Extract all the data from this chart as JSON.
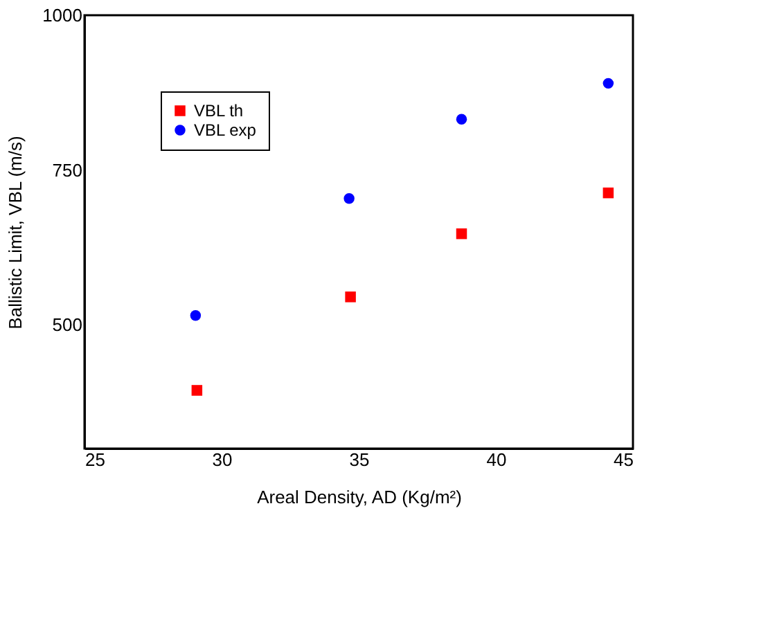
{
  "chart_data": {
    "type": "scatter",
    "xlabel": "Areal Density, AD (Kg/m²)",
    "ylabel": "Ballistic Limit, VBL (m/s)",
    "xlim": [
      25,
      45
    ],
    "xticks": [
      25,
      30,
      35,
      40,
      45
    ],
    "ylim": [
      300,
      1000
    ],
    "yticks": [
      500,
      750,
      1000
    ],
    "grid": false,
    "legend": "top left",
    "series": [
      {
        "name": "VBL th",
        "color": "#ff0000",
        "marker": "square",
        "x": [
          29.1,
          34.7,
          38.75,
          44.1
        ],
        "values": [
          394,
          545,
          647,
          713
        ]
      },
      {
        "name": "VBL exp",
        "color": "#0000ff",
        "marker": "circle",
        "x": [
          29.05,
          34.65,
          38.75,
          44.1
        ],
        "values": [
          515,
          704,
          832,
          890
        ]
      }
    ]
  }
}
